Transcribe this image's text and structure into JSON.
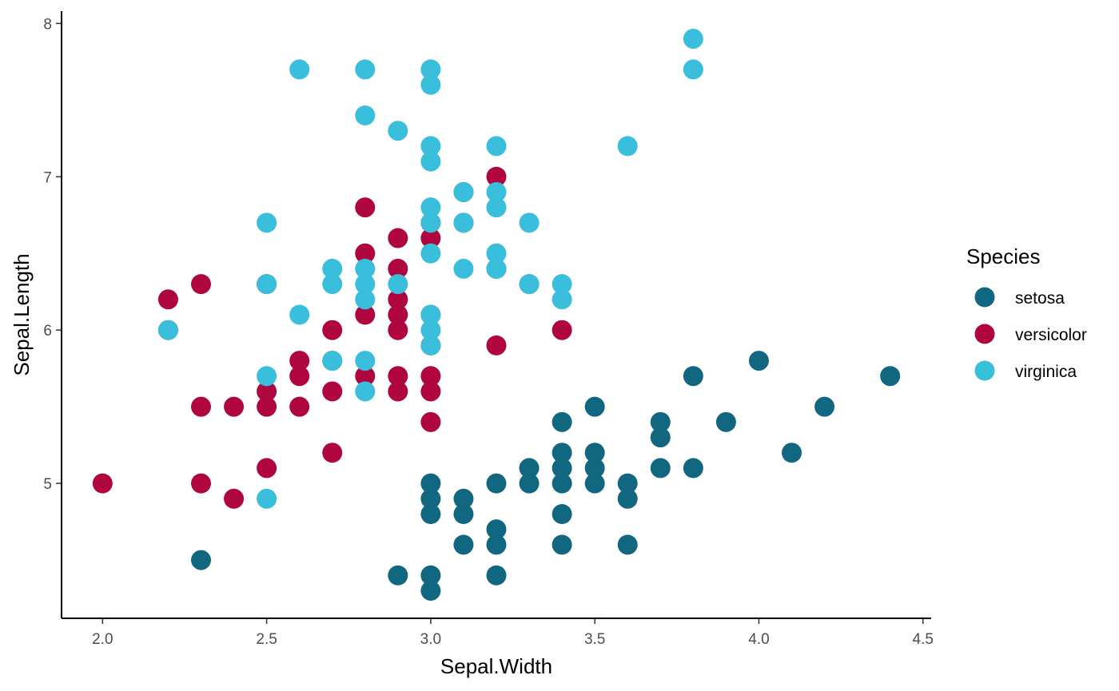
{
  "chart_data": {
    "type": "scatter",
    "xlabel": "Sepal.Width",
    "ylabel": "Sepal.Length",
    "xlim": [
      1.875,
      4.525
    ],
    "ylim": [
      4.12,
      8.08
    ],
    "x_ticks": [
      2.0,
      2.5,
      3.0,
      3.5,
      4.0,
      4.5
    ],
    "x_tick_labels": [
      "2.0",
      "2.5",
      "3.0",
      "3.5",
      "4.0",
      "4.5"
    ],
    "y_ticks": [
      5,
      6,
      7,
      8
    ],
    "y_tick_labels": [
      "5",
      "6",
      "7",
      "8"
    ],
    "grid": false,
    "legend": {
      "title": "Species",
      "position": "right"
    },
    "series": [
      {
        "name": "setosa",
        "color": "#10677F",
        "points": [
          [
            2.3,
            4.5
          ],
          [
            2.9,
            4.4
          ],
          [
            3.0,
            4.3
          ],
          [
            3.0,
            4.4
          ],
          [
            3.0,
            4.8
          ],
          [
            3.0,
            4.9
          ],
          [
            3.0,
            5.0
          ],
          [
            3.1,
            4.6
          ],
          [
            3.1,
            4.8
          ],
          [
            3.1,
            4.9
          ],
          [
            3.2,
            4.4
          ],
          [
            3.2,
            4.6
          ],
          [
            3.2,
            4.7
          ],
          [
            3.2,
            5.0
          ],
          [
            3.3,
            5.0
          ],
          [
            3.3,
            5.1
          ],
          [
            3.4,
            4.6
          ],
          [
            3.4,
            4.8
          ],
          [
            3.4,
            5.0
          ],
          [
            3.4,
            5.1
          ],
          [
            3.4,
            5.2
          ],
          [
            3.4,
            5.4
          ],
          [
            3.5,
            5.0
          ],
          [
            3.5,
            5.1
          ],
          [
            3.5,
            5.2
          ],
          [
            3.5,
            5.5
          ],
          [
            3.6,
            4.6
          ],
          [
            3.6,
            4.9
          ],
          [
            3.6,
            5.0
          ],
          [
            3.7,
            5.1
          ],
          [
            3.7,
            5.3
          ],
          [
            3.7,
            5.4
          ],
          [
            3.8,
            5.1
          ],
          [
            3.8,
            5.7
          ],
          [
            3.9,
            5.4
          ],
          [
            4.0,
            5.8
          ],
          [
            4.1,
            5.2
          ],
          [
            4.2,
            5.5
          ],
          [
            4.4,
            5.7
          ]
        ]
      },
      {
        "name": "versicolor",
        "color": "#B0063F",
        "points": [
          [
            2.0,
            5.0
          ],
          [
            2.2,
            6.0
          ],
          [
            2.2,
            6.2
          ],
          [
            2.3,
            5.0
          ],
          [
            2.3,
            5.5
          ],
          [
            2.3,
            6.3
          ],
          [
            2.4,
            4.9
          ],
          [
            2.4,
            5.5
          ],
          [
            2.5,
            5.1
          ],
          [
            2.5,
            5.5
          ],
          [
            2.5,
            5.6
          ],
          [
            2.5,
            6.3
          ],
          [
            2.6,
            5.5
          ],
          [
            2.6,
            5.7
          ],
          [
            2.6,
            5.8
          ],
          [
            2.7,
            5.2
          ],
          [
            2.7,
            5.6
          ],
          [
            2.7,
            5.8
          ],
          [
            2.7,
            6.0
          ],
          [
            2.8,
            5.7
          ],
          [
            2.8,
            6.1
          ],
          [
            2.8,
            6.5
          ],
          [
            2.8,
            6.8
          ],
          [
            2.9,
            5.6
          ],
          [
            2.9,
            5.7
          ],
          [
            2.9,
            6.0
          ],
          [
            2.9,
            6.1
          ],
          [
            2.9,
            6.2
          ],
          [
            2.9,
            6.4
          ],
          [
            2.9,
            6.6
          ],
          [
            3.0,
            5.4
          ],
          [
            3.0,
            5.6
          ],
          [
            3.0,
            5.7
          ],
          [
            3.0,
            5.9
          ],
          [
            3.0,
            6.1
          ],
          [
            3.0,
            6.6
          ],
          [
            3.0,
            6.7
          ],
          [
            3.1,
            6.7
          ],
          [
            3.1,
            6.9
          ],
          [
            3.2,
            5.9
          ],
          [
            3.2,
            6.4
          ],
          [
            3.2,
            7.0
          ],
          [
            3.3,
            6.3
          ],
          [
            3.4,
            6.0
          ]
        ]
      },
      {
        "name": "virginica",
        "color": "#39BEDC",
        "points": [
          [
            2.2,
            6.0
          ],
          [
            2.5,
            4.9
          ],
          [
            2.5,
            5.7
          ],
          [
            2.5,
            6.3
          ],
          [
            2.5,
            6.7
          ],
          [
            2.6,
            6.1
          ],
          [
            2.6,
            7.7
          ],
          [
            2.7,
            5.8
          ],
          [
            2.7,
            6.3
          ],
          [
            2.7,
            6.4
          ],
          [
            2.8,
            5.6
          ],
          [
            2.8,
            5.8
          ],
          [
            2.8,
            6.2
          ],
          [
            2.8,
            6.3
          ],
          [
            2.8,
            6.4
          ],
          [
            2.8,
            7.4
          ],
          [
            2.8,
            7.7
          ],
          [
            2.9,
            6.3
          ],
          [
            2.9,
            7.3
          ],
          [
            3.0,
            5.9
          ],
          [
            3.0,
            6.0
          ],
          [
            3.0,
            6.1
          ],
          [
            3.0,
            6.5
          ],
          [
            3.0,
            6.7
          ],
          [
            3.0,
            6.8
          ],
          [
            3.0,
            7.1
          ],
          [
            3.0,
            7.2
          ],
          [
            3.0,
            7.6
          ],
          [
            3.0,
            7.7
          ],
          [
            3.1,
            6.4
          ],
          [
            3.1,
            6.7
          ],
          [
            3.1,
            6.9
          ],
          [
            3.2,
            6.4
          ],
          [
            3.2,
            6.5
          ],
          [
            3.2,
            6.8
          ],
          [
            3.2,
            6.9
          ],
          [
            3.2,
            7.2
          ],
          [
            3.3,
            6.3
          ],
          [
            3.3,
            6.7
          ],
          [
            3.4,
            6.2
          ],
          [
            3.4,
            6.3
          ],
          [
            3.6,
            7.2
          ],
          [
            3.8,
            7.7
          ],
          [
            3.8,
            7.9
          ]
        ]
      }
    ]
  }
}
